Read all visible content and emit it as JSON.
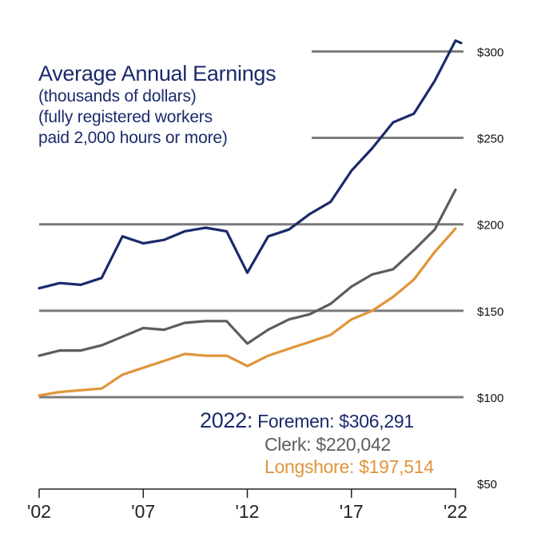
{
  "chart_data": {
    "type": "line",
    "title": "Average Annual Earnings",
    "subtitle": [
      "(thousands of dollars)",
      "(fully registered workers",
      "paid 2,000 hours or more)"
    ],
    "x": [
      2002,
      2003,
      2004,
      2005,
      2006,
      2007,
      2008,
      2009,
      2010,
      2011,
      2012,
      2013,
      2014,
      2015,
      2016,
      2017,
      2018,
      2019,
      2020,
      2021,
      2022
    ],
    "x_tick_values": [
      2002,
      2007,
      2012,
      2017,
      2022
    ],
    "x_tick_labels": [
      "'02",
      "'07",
      "'12",
      "'17",
      "'22"
    ],
    "y_tick_values": [
      50,
      100,
      150,
      200,
      250,
      300
    ],
    "y_tick_labels": [
      "$50",
      "$100",
      "$150",
      "$200",
      "$250",
      "$300"
    ],
    "ylim": [
      50,
      310
    ],
    "gridlines": [
      100,
      150,
      200,
      250,
      300
    ],
    "series": [
      {
        "key": "foremen",
        "color": "#1b2a6b",
        "values": [
          163,
          166,
          165,
          169,
          193,
          189,
          191,
          196,
          198,
          196,
          172,
          193,
          197,
          206,
          213,
          231,
          244,
          259,
          264,
          283,
          306.3
        ]
      },
      {
        "key": "clerk",
        "color": "#5d5d5d",
        "values": [
          124,
          127,
          127,
          130,
          135,
          140,
          139,
          143,
          144,
          144,
          131,
          139,
          145,
          148,
          154,
          164,
          171,
          174,
          185,
          197,
          220.0
        ]
      },
      {
        "key": "longshore",
        "color": "#e0953b",
        "values": [
          101,
          103,
          104,
          105,
          113,
          117,
          121,
          125,
          124,
          124,
          118,
          124,
          128,
          132,
          136,
          145,
          150,
          158,
          168,
          184,
          197.5
        ]
      }
    ],
    "annotations": {
      "foremen_year": "2022:",
      "foremen": "Foremen: $306,291",
      "clerk": "Clerk: $220,042",
      "longshore": "Longshore: $197,514"
    }
  },
  "colors": {
    "foremen": "#1b2a6b",
    "clerk": "#5d5d5d",
    "longshore": "#e0953b",
    "grid": "#7b7b7b",
    "axis": "#222222"
  }
}
